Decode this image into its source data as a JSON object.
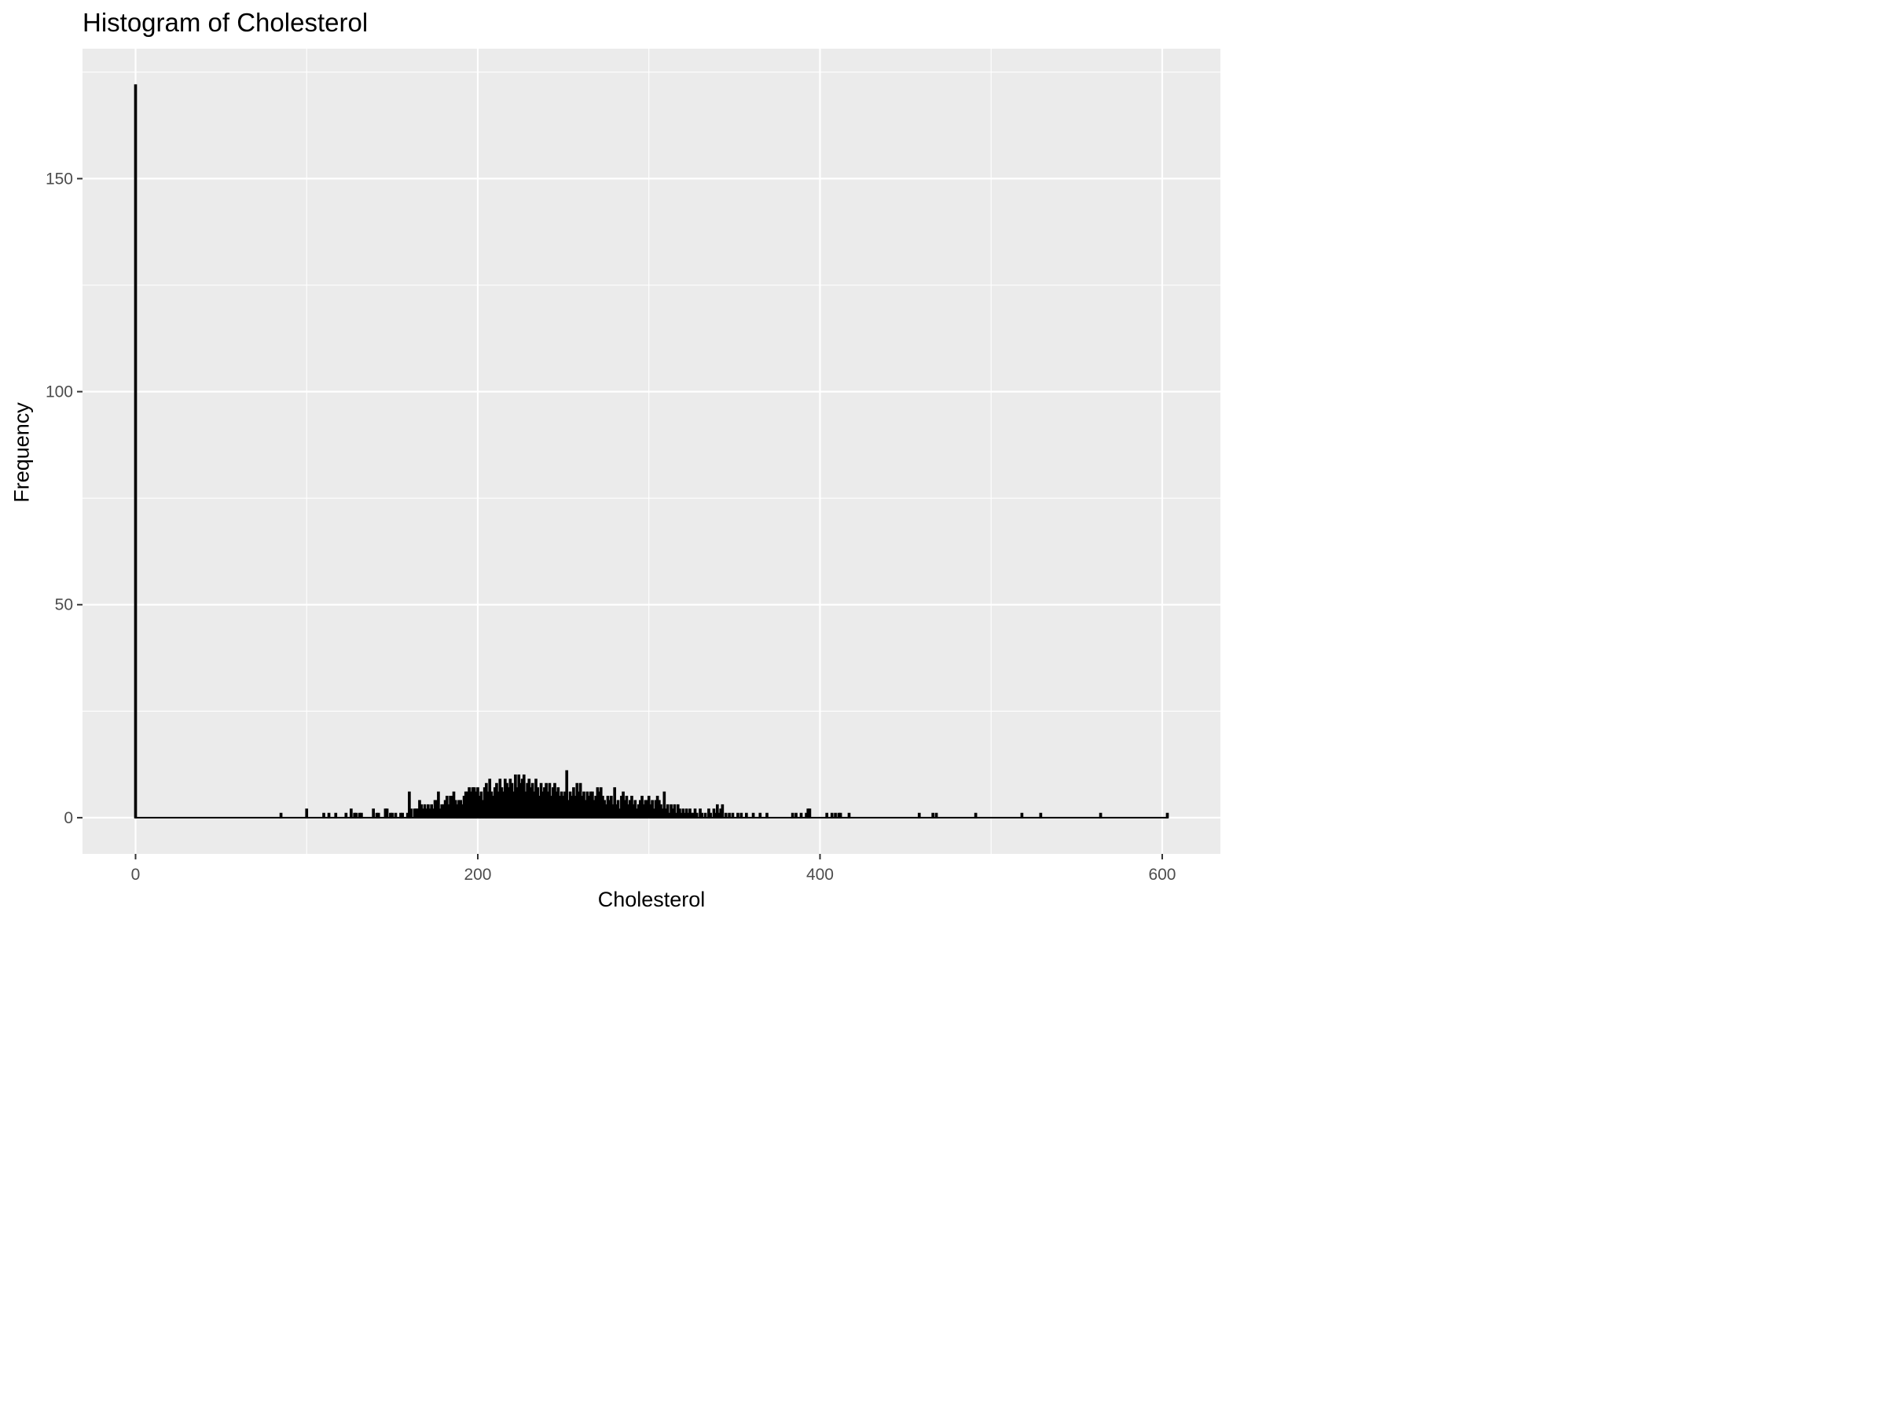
{
  "chart_data": {
    "type": "bar",
    "title": "Histogram of Cholesterol",
    "xlabel": "Cholesterol",
    "ylabel": "Frequency",
    "xlim": [
      -31,
      634
    ],
    "ylim": [
      -8.5,
      180.5
    ],
    "x_ticks": [
      0,
      200,
      400,
      600
    ],
    "y_ticks": [
      0,
      50,
      100,
      150
    ],
    "grid": true,
    "bin_width": 1,
    "background_color": "#ebebeb",
    "bar_color": "#000000",
    "bins": [
      [
        0,
        172
      ],
      [
        85,
        1
      ],
      [
        100,
        2
      ],
      [
        110,
        1
      ],
      [
        113,
        1
      ],
      [
        117,
        1
      ],
      [
        123,
        1
      ],
      [
        126,
        2
      ],
      [
        128,
        1
      ],
      [
        129,
        1
      ],
      [
        131,
        1
      ],
      [
        132,
        1
      ],
      [
        139,
        2
      ],
      [
        141,
        1
      ],
      [
        142,
        1
      ],
      [
        146,
        2
      ],
      [
        147,
        2
      ],
      [
        149,
        1
      ],
      [
        150,
        1
      ],
      [
        152,
        1
      ],
      [
        155,
        1
      ],
      [
        156,
        1
      ],
      [
        159,
        1
      ],
      [
        160,
        6
      ],
      [
        161,
        2
      ],
      [
        163,
        2
      ],
      [
        164,
        2
      ],
      [
        165,
        2
      ],
      [
        166,
        4
      ],
      [
        167,
        3
      ],
      [
        168,
        2
      ],
      [
        169,
        3
      ],
      [
        170,
        2
      ],
      [
        171,
        3
      ],
      [
        172,
        2
      ],
      [
        173,
        3
      ],
      [
        174,
        2
      ],
      [
        175,
        4
      ],
      [
        176,
        4
      ],
      [
        177,
        6
      ],
      [
        178,
        2
      ],
      [
        179,
        3
      ],
      [
        180,
        3
      ],
      [
        181,
        4
      ],
      [
        182,
        5
      ],
      [
        183,
        3
      ],
      [
        184,
        5
      ],
      [
        185,
        5
      ],
      [
        186,
        6
      ],
      [
        187,
        4
      ],
      [
        188,
        3
      ],
      [
        189,
        4
      ],
      [
        190,
        4
      ],
      [
        191,
        3
      ],
      [
        192,
        5
      ],
      [
        193,
        6
      ],
      [
        194,
        6
      ],
      [
        195,
        7
      ],
      [
        196,
        6
      ],
      [
        197,
        7
      ],
      [
        198,
        7
      ],
      [
        199,
        6
      ],
      [
        200,
        7
      ],
      [
        201,
        5
      ],
      [
        202,
        6
      ],
      [
        203,
        4
      ],
      [
        204,
        7
      ],
      [
        205,
        8
      ],
      [
        206,
        6
      ],
      [
        207,
        9
      ],
      [
        208,
        6
      ],
      [
        209,
        5
      ],
      [
        210,
        7
      ],
      [
        211,
        8
      ],
      [
        212,
        6
      ],
      [
        213,
        9
      ],
      [
        214,
        7
      ],
      [
        215,
        6
      ],
      [
        216,
        9
      ],
      [
        217,
        8
      ],
      [
        218,
        7
      ],
      [
        219,
        9
      ],
      [
        220,
        8
      ],
      [
        221,
        6
      ],
      [
        222,
        10
      ],
      [
        223,
        7
      ],
      [
        224,
        10
      ],
      [
        225,
        8
      ],
      [
        226,
        9
      ],
      [
        227,
        10
      ],
      [
        228,
        6
      ],
      [
        229,
        8
      ],
      [
        230,
        9
      ],
      [
        231,
        7
      ],
      [
        232,
        8
      ],
      [
        233,
        6
      ],
      [
        234,
        9
      ],
      [
        235,
        7
      ],
      [
        236,
        5
      ],
      [
        237,
        8
      ],
      [
        238,
        6
      ],
      [
        239,
        7
      ],
      [
        240,
        8
      ],
      [
        241,
        6
      ],
      [
        242,
        8
      ],
      [
        243,
        5
      ],
      [
        244,
        7
      ],
      [
        245,
        8
      ],
      [
        246,
        6
      ],
      [
        247,
        7
      ],
      [
        248,
        5
      ],
      [
        249,
        6
      ],
      [
        250,
        5
      ],
      [
        251,
        6
      ],
      [
        252,
        11
      ],
      [
        253,
        4
      ],
      [
        254,
        6
      ],
      [
        255,
        5
      ],
      [
        256,
        7
      ],
      [
        257,
        5
      ],
      [
        258,
        8
      ],
      [
        259,
        6
      ],
      [
        260,
        8
      ],
      [
        261,
        5
      ],
      [
        262,
        6
      ],
      [
        263,
        4
      ],
      [
        264,
        6
      ],
      [
        265,
        5
      ],
      [
        266,
        6
      ],
      [
        267,
        6
      ],
      [
        268,
        4
      ],
      [
        269,
        5
      ],
      [
        270,
        7
      ],
      [
        271,
        6
      ],
      [
        272,
        7
      ],
      [
        273,
        5
      ],
      [
        274,
        4
      ],
      [
        275,
        3
      ],
      [
        276,
        5
      ],
      [
        277,
        4
      ],
      [
        278,
        5
      ],
      [
        279,
        3
      ],
      [
        280,
        7
      ],
      [
        281,
        3
      ],
      [
        282,
        4
      ],
      [
        283,
        2
      ],
      [
        284,
        5
      ],
      [
        285,
        6
      ],
      [
        286,
        4
      ],
      [
        287,
        5
      ],
      [
        288,
        3
      ],
      [
        289,
        4
      ],
      [
        290,
        5
      ],
      [
        291,
        3
      ],
      [
        292,
        4
      ],
      [
        293,
        2
      ],
      [
        294,
        3
      ],
      [
        295,
        4
      ],
      [
        296,
        5
      ],
      [
        297,
        3
      ],
      [
        298,
        4
      ],
      [
        299,
        4
      ],
      [
        300,
        5
      ],
      [
        301,
        3
      ],
      [
        302,
        4
      ],
      [
        303,
        2
      ],
      [
        304,
        4
      ],
      [
        305,
        5
      ],
      [
        306,
        4
      ],
      [
        307,
        3
      ],
      [
        308,
        2
      ],
      [
        309,
        6
      ],
      [
        310,
        2
      ],
      [
        311,
        3
      ],
      [
        312,
        1
      ],
      [
        313,
        3
      ],
      [
        314,
        2
      ],
      [
        315,
        3
      ],
      [
        316,
        1
      ],
      [
        317,
        3
      ],
      [
        318,
        2
      ],
      [
        319,
        1
      ],
      [
        320,
        2
      ],
      [
        321,
        1
      ],
      [
        322,
        2
      ],
      [
        323,
        1
      ],
      [
        324,
        2
      ],
      [
        325,
        1
      ],
      [
        326,
        1
      ],
      [
        327,
        2
      ],
      [
        328,
        1
      ],
      [
        330,
        2
      ],
      [
        331,
        1
      ],
      [
        333,
        1
      ],
      [
        335,
        2
      ],
      [
        336,
        1
      ],
      [
        338,
        2
      ],
      [
        339,
        1
      ],
      [
        340,
        3
      ],
      [
        341,
        1
      ],
      [
        342,
        2
      ],
      [
        343,
        3
      ],
      [
        345,
        1
      ],
      [
        347,
        1
      ],
      [
        349,
        1
      ],
      [
        352,
        1
      ],
      [
        354,
        1
      ],
      [
        357,
        1
      ],
      [
        361,
        1
      ],
      [
        365,
        1
      ],
      [
        369,
        1
      ],
      [
        384,
        1
      ],
      [
        386,
        1
      ],
      [
        389,
        1
      ],
      [
        392,
        1
      ],
      [
        393,
        2
      ],
      [
        394,
        2
      ],
      [
        404,
        1
      ],
      [
        407,
        1
      ],
      [
        409,
        1
      ],
      [
        411,
        1
      ],
      [
        412,
        1
      ],
      [
        417,
        1
      ],
      [
        458,
        1
      ],
      [
        466,
        1
      ],
      [
        468,
        1
      ],
      [
        491,
        1
      ],
      [
        518,
        1
      ],
      [
        529,
        1
      ],
      [
        564,
        1
      ],
      [
        603,
        1
      ]
    ]
  }
}
